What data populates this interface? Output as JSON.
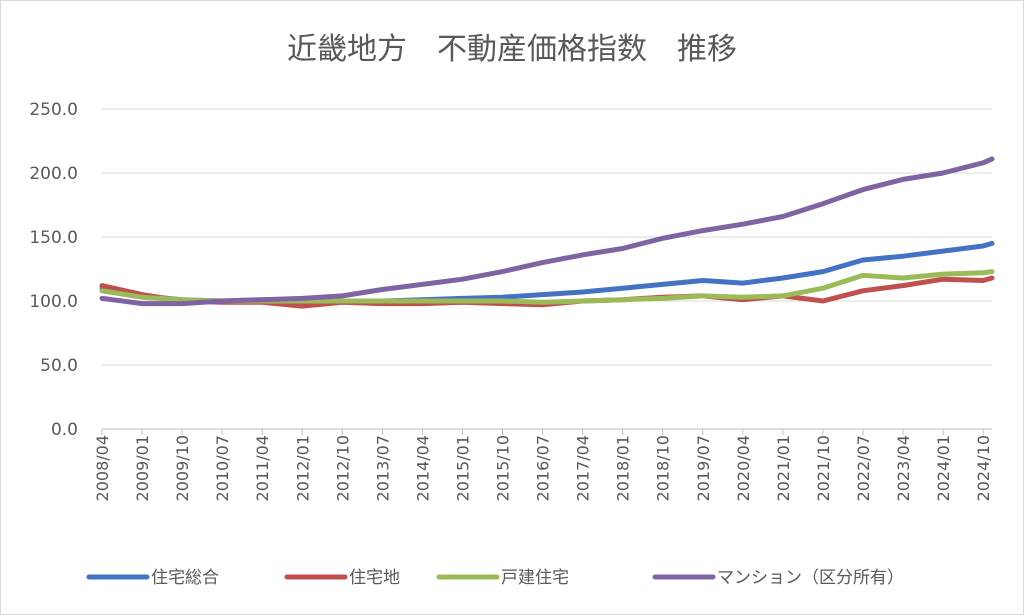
{
  "chart_data": {
    "type": "line",
    "title": "近畿地方　不動産価格指数　推移",
    "xlabel": "",
    "ylabel": "",
    "ylim": [
      0,
      250
    ],
    "yticks": [
      "0.0",
      "50.0",
      "100.0",
      "150.0",
      "200.0",
      "250.0"
    ],
    "x_start": "2008/04",
    "x_end": "2024/12",
    "xticks": [
      "2008/04",
      "2009/01",
      "2009/10",
      "2010/07",
      "2011/04",
      "2012/01",
      "2012/10",
      "2013/07",
      "2014/04",
      "2015/01",
      "2015/10",
      "2016/07",
      "2017/04",
      "2018/01",
      "2018/10",
      "2019/07",
      "2020/04",
      "2021/01",
      "2021/10",
      "2022/07",
      "2023/04",
      "2024/01",
      "2024/10"
    ],
    "grid": true,
    "legend_position": "bottom",
    "series": [
      {
        "name": "住宅総合",
        "color": "#4472c4",
        "points": [
          [
            "2008/04",
            110
          ],
          [
            "2009/01",
            104
          ],
          [
            "2009/10",
            101
          ],
          [
            "2010/07",
            100
          ],
          [
            "2011/04",
            101
          ],
          [
            "2012/01",
            100
          ],
          [
            "2012/10",
            100
          ],
          [
            "2013/07",
            100
          ],
          [
            "2014/04",
            101
          ],
          [
            "2015/01",
            102
          ],
          [
            "2015/10",
            103
          ],
          [
            "2016/07",
            105
          ],
          [
            "2017/04",
            107
          ],
          [
            "2018/01",
            110
          ],
          [
            "2018/10",
            113
          ],
          [
            "2019/07",
            116
          ],
          [
            "2020/04",
            114
          ],
          [
            "2021/01",
            118
          ],
          [
            "2021/10",
            123
          ],
          [
            "2022/07",
            132
          ],
          [
            "2023/04",
            135
          ],
          [
            "2024/01",
            139
          ],
          [
            "2024/10",
            143
          ],
          [
            "2024/12",
            145
          ]
        ]
      },
      {
        "name": "住宅地",
        "color": "#c0504d",
        "points": [
          [
            "2008/04",
            112
          ],
          [
            "2009/01",
            105
          ],
          [
            "2009/10",
            100
          ],
          [
            "2010/07",
            99
          ],
          [
            "2011/04",
            99
          ],
          [
            "2012/01",
            96
          ],
          [
            "2012/10",
            99
          ],
          [
            "2013/07",
            98
          ],
          [
            "2014/04",
            98
          ],
          [
            "2015/01",
            99
          ],
          [
            "2015/10",
            98
          ],
          [
            "2016/07",
            97
          ],
          [
            "2017/04",
            100
          ],
          [
            "2018/01",
            101
          ],
          [
            "2018/10",
            103
          ],
          [
            "2019/07",
            104
          ],
          [
            "2020/04",
            101
          ],
          [
            "2021/01",
            104
          ],
          [
            "2021/10",
            100
          ],
          [
            "2022/07",
            108
          ],
          [
            "2023/04",
            112
          ],
          [
            "2024/01",
            117
          ],
          [
            "2024/10",
            116
          ],
          [
            "2024/12",
            118
          ]
        ]
      },
      {
        "name": "戸建住宅",
        "color": "#9bbb59",
        "points": [
          [
            "2008/04",
            108
          ],
          [
            "2009/01",
            103
          ],
          [
            "2009/10",
            101
          ],
          [
            "2010/07",
            100
          ],
          [
            "2011/04",
            100
          ],
          [
            "2012/01",
            100
          ],
          [
            "2012/10",
            100
          ],
          [
            "2013/07",
            100
          ],
          [
            "2014/04",
            100
          ],
          [
            "2015/01",
            100
          ],
          [
            "2015/10",
            100
          ],
          [
            "2016/07",
            99
          ],
          [
            "2017/04",
            100
          ],
          [
            "2018/01",
            101
          ],
          [
            "2018/10",
            102
          ],
          [
            "2019/07",
            104
          ],
          [
            "2020/04",
            103
          ],
          [
            "2021/01",
            104
          ],
          [
            "2021/10",
            110
          ],
          [
            "2022/07",
            120
          ],
          [
            "2023/04",
            118
          ],
          [
            "2024/01",
            121
          ],
          [
            "2024/10",
            122
          ],
          [
            "2024/12",
            123
          ]
        ]
      },
      {
        "name": "マンション（区分所有）",
        "color": "#8064a2",
        "points": [
          [
            "2008/04",
            102
          ],
          [
            "2009/01",
            98
          ],
          [
            "2009/10",
            98
          ],
          [
            "2010/07",
            100
          ],
          [
            "2011/04",
            101
          ],
          [
            "2012/01",
            102
          ],
          [
            "2012/10",
            104
          ],
          [
            "2013/07",
            109
          ],
          [
            "2014/04",
            113
          ],
          [
            "2015/01",
            117
          ],
          [
            "2015/10",
            123
          ],
          [
            "2016/07",
            130
          ],
          [
            "2017/04",
            136
          ],
          [
            "2018/01",
            141
          ],
          [
            "2018/10",
            149
          ],
          [
            "2019/07",
            155
          ],
          [
            "2020/04",
            160
          ],
          [
            "2021/01",
            166
          ],
          [
            "2021/10",
            176
          ],
          [
            "2022/07",
            187
          ],
          [
            "2023/04",
            195
          ],
          [
            "2024/01",
            200
          ],
          [
            "2024/10",
            208
          ],
          [
            "2024/12",
            211
          ]
        ]
      }
    ]
  }
}
